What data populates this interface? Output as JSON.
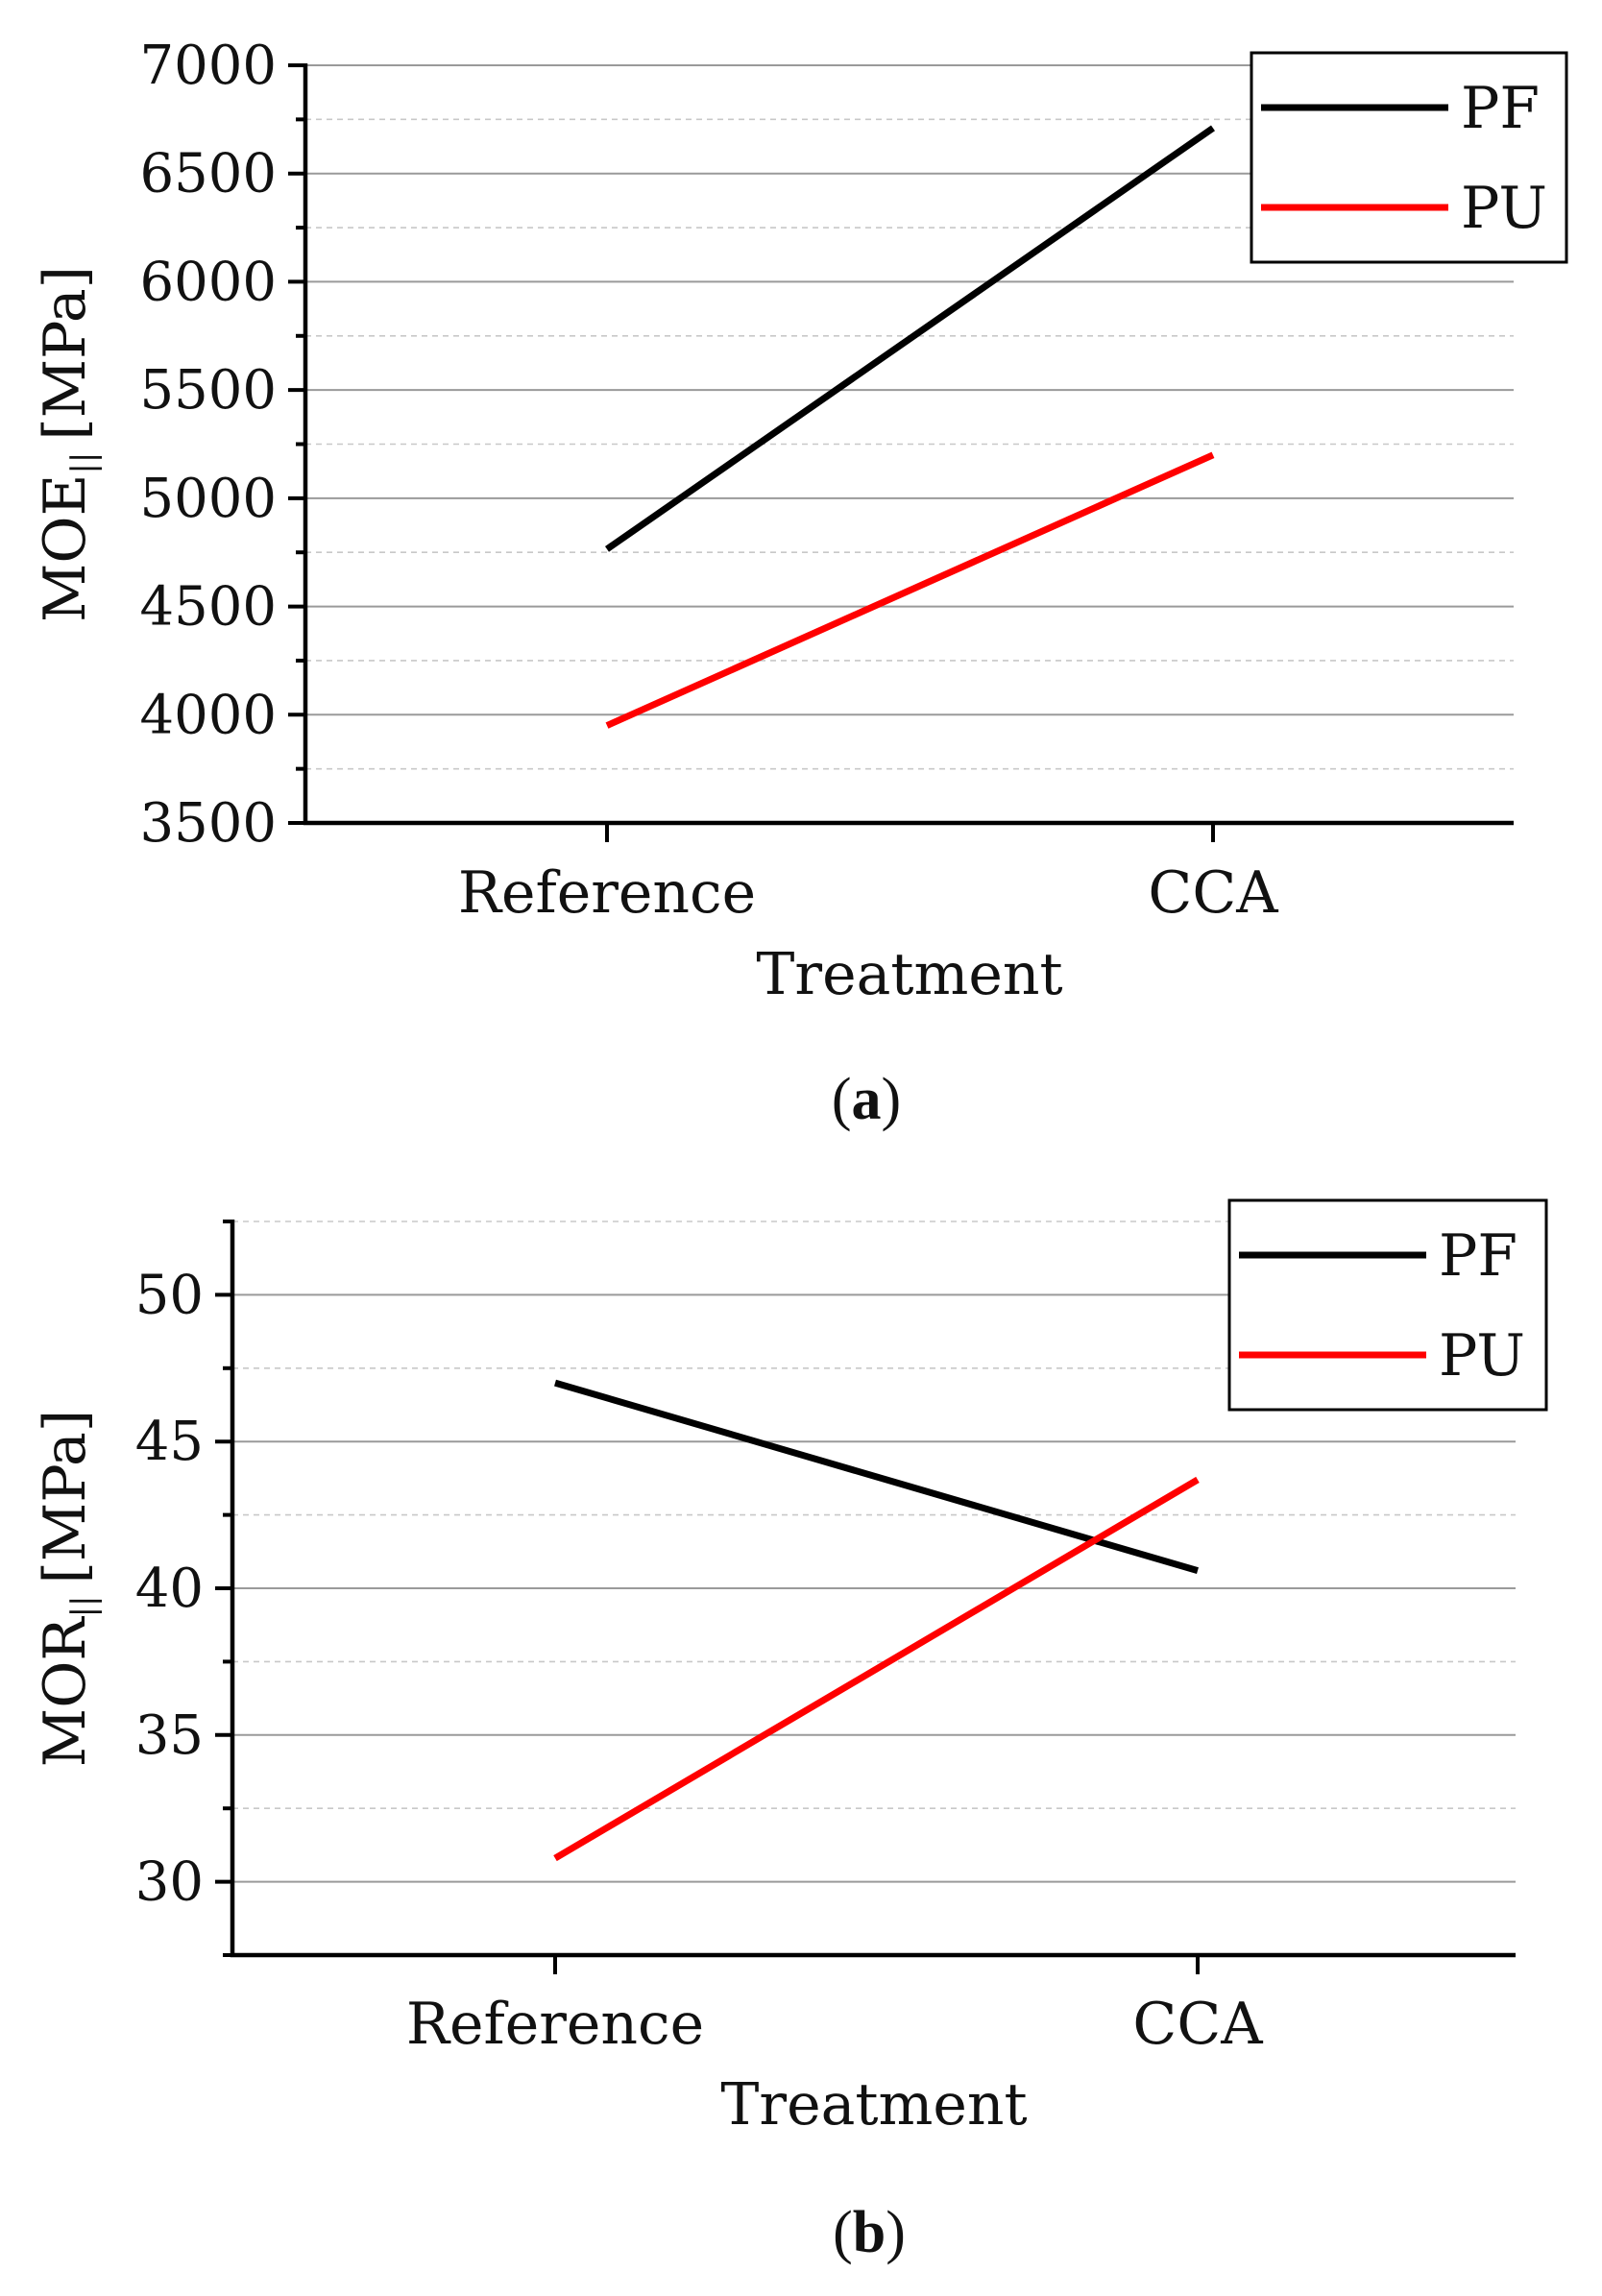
{
  "chart_data": [
    {
      "id": "a",
      "type": "line",
      "panel_label": "a",
      "categories": [
        "Reference",
        "CCA"
      ],
      "series": [
        {
          "name": "PF",
          "color": "#000000",
          "values": [
            4765,
            6710
          ]
        },
        {
          "name": "PU",
          "color": "#ff0000",
          "values": [
            3950,
            5200
          ]
        }
      ],
      "xlabel": "Treatment",
      "ylabel_main": "MOE",
      "ylabel_sub": "||",
      "ylabel_unit": "[MPa]",
      "ylim": [
        3500,
        7000
      ],
      "yticks": [
        3500,
        4000,
        4500,
        5000,
        5500,
        6000,
        6500,
        7000
      ],
      "minor_step": 250,
      "grid": true,
      "legend": "top-right"
    },
    {
      "id": "b",
      "type": "line",
      "panel_label": "b",
      "categories": [
        "Reference",
        "CCA"
      ],
      "series": [
        {
          "name": "PF",
          "color": "#000000",
          "values": [
            47.0,
            40.6
          ]
        },
        {
          "name": "PU",
          "color": "#ff0000",
          "values": [
            30.8,
            43.7
          ]
        }
      ],
      "xlabel": "Treatment",
      "ylabel_main": "MOR",
      "ylabel_sub": "||",
      "ylabel_unit": "[MPa]",
      "ylim": [
        27.5,
        52.5
      ],
      "yticks": [
        30,
        35,
        40,
        45,
        50
      ],
      "minor_step": 2.5,
      "grid": true,
      "legend": "top-right"
    }
  ]
}
